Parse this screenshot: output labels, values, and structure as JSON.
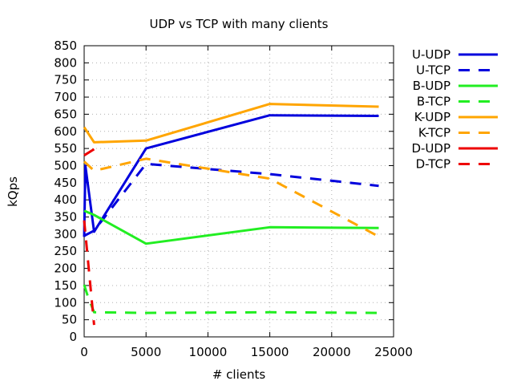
{
  "chart_data": {
    "type": "line",
    "title": "UDP vs TCP with many clients",
    "xlabel": "# clients",
    "ylabel": "kQps",
    "xlim": [
      0,
      25000
    ],
    "ylim": [
      0,
      850
    ],
    "x_ticks": [
      0,
      5000,
      10000,
      15000,
      20000,
      25000
    ],
    "y_ticks": [
      0,
      50,
      100,
      150,
      200,
      250,
      300,
      350,
      400,
      450,
      500,
      550,
      600,
      650,
      700,
      750,
      800,
      850
    ],
    "grid": true,
    "legend_position": "outside-right",
    "series": [
      {
        "name": "U-UDP",
        "color": "#0000dd",
        "dashed": false,
        "x": [
          0,
          100,
          800,
          5000,
          15000,
          23800
        ],
        "y": [
          292,
          500,
          307,
          550,
          647,
          645
        ]
      },
      {
        "name": "U-TCP",
        "color": "#0000dd",
        "dashed": true,
        "x": [
          0,
          800,
          5000,
          15000,
          23800
        ],
        "y": [
          295,
          310,
          505,
          475,
          441
        ]
      },
      {
        "name": "B-UDP",
        "color": "#22ee22",
        "dashed": false,
        "x": [
          0,
          800,
          5000,
          15000,
          23800
        ],
        "y": [
          368,
          356,
          272,
          320,
          318
        ]
      },
      {
        "name": "B-TCP",
        "color": "#22ee22",
        "dashed": true,
        "x": [
          0,
          300,
          800,
          5000,
          15000,
          23800
        ],
        "y": [
          152,
          118,
          72,
          70,
          72,
          70
        ]
      },
      {
        "name": "K-UDP",
        "color": "#ffa500",
        "dashed": false,
        "x": [
          0,
          800,
          5000,
          15000,
          23800
        ],
        "y": [
          612,
          568,
          573,
          680,
          672
        ]
      },
      {
        "name": "K-TCP",
        "color": "#ffa500",
        "dashed": true,
        "x": [
          0,
          800,
          5000,
          15000,
          23800
        ],
        "y": [
          512,
          485,
          520,
          462,
          293
        ]
      },
      {
        "name": "D-UDP",
        "color": "#ee0000",
        "dashed": false,
        "x": [
          0,
          800
        ],
        "y": [
          530,
          548
        ]
      },
      {
        "name": "D-TCP",
        "color": "#ee0000",
        "dashed": true,
        "x": [
          0,
          800
        ],
        "y": [
          340,
          35
        ]
      }
    ]
  }
}
